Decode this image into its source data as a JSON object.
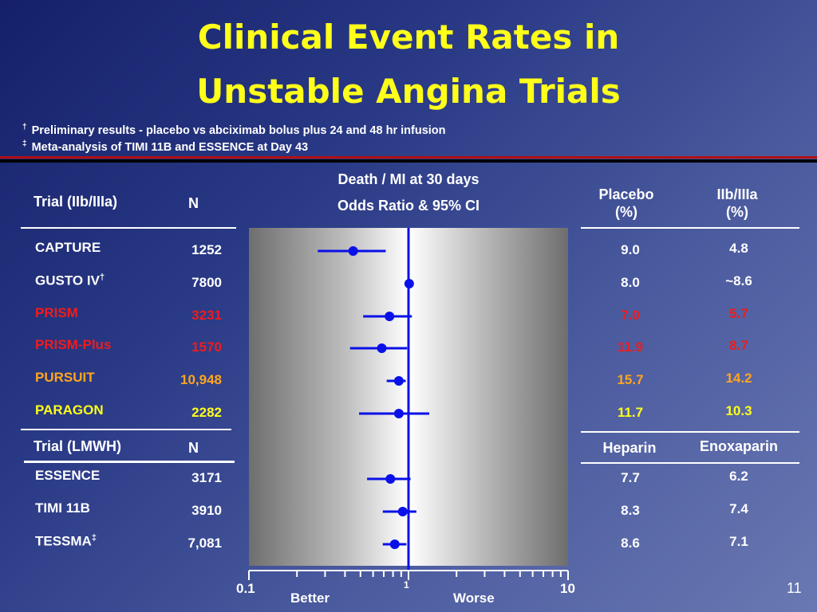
{
  "title_line1": "Clinical Event Rates in",
  "title_line2": "Unstable Angina Trials",
  "footnotes": [
    {
      "mark": "†",
      "text": "Preliminary results - placebo vs abciximab bolus plus 24 and 48 hr infusion"
    },
    {
      "mark": "‡",
      "text": "Meta-analysis of TIMI 11B and ESSENCE at Day 43"
    }
  ],
  "headers": {
    "trial": "Trial (IIb/IIIa)",
    "n": "N",
    "endpoint": "Death / MI at 30 days",
    "measure": "Odds Ratio & 95% CI",
    "placebo_l1": "Placebo",
    "placebo_l2": "(%)",
    "iib_l1": "IIb/IIIa",
    "iib_l2": "(%)"
  },
  "section2": {
    "trial": "Trial (LMWH)",
    "n": "N",
    "heparin": "Heparin",
    "enox": "Enoxaparin"
  },
  "colors": {
    "white": "#ffffff",
    "red": "#ee1c1c",
    "orange": "#ffa51f",
    "yellow": "#ffff1a",
    "marker": "#0a10e8"
  },
  "trials": [
    {
      "name": "CAPTURE",
      "sup": "",
      "n": "1252",
      "ctrl": "9.0",
      "tx": "4.8",
      "color": "#ffffff"
    },
    {
      "name": "GUSTO IV",
      "sup": "†",
      "n": "7800",
      "ctrl": "8.0",
      "tx": "~8.6",
      "color": "#ffffff"
    },
    {
      "name": "PRISM",
      "sup": "",
      "n": "3231",
      "ctrl": "7.0",
      "tx": "5.7",
      "color": "#ee1c1c"
    },
    {
      "name": "PRISM-Plus",
      "sup": "",
      "n": "1570",
      "ctrl": "11.9",
      "tx": "8.7",
      "color": "#ee1c1c"
    },
    {
      "name": "PURSUIT",
      "sup": "",
      "n": "10,948",
      "ctrl": "15.7",
      "tx": "14.2",
      "color": "#ffa51f"
    },
    {
      "name": "PARAGON",
      "sup": "",
      "n": "2282",
      "ctrl": "11.7",
      "tx": "10.3",
      "color": "#ffff1a"
    },
    {
      "name": "ESSENCE",
      "sup": "",
      "n": "3171",
      "ctrl": "7.7",
      "tx": "6.2",
      "color": "#ffffff"
    },
    {
      "name": "TIMI 11B",
      "sup": "",
      "n": "3910",
      "ctrl": "8.3",
      "tx": "7.4",
      "color": "#ffffff"
    },
    {
      "name": "TESSMA",
      "sup": "‡",
      "n": "7,081",
      "ctrl": "8.6",
      "tx": "7.1",
      "color": "#ffffff"
    }
  ],
  "chart_data": {
    "type": "forest",
    "scale": "log",
    "xlim": [
      0.1,
      10
    ],
    "reference_line": 1,
    "tick_labels": [
      "0.1",
      "1",
      "10"
    ],
    "left_label": "Better",
    "right_label": "Worse",
    "points": [
      {
        "trial": "CAPTURE",
        "or": 0.45,
        "lo": 0.27,
        "hi": 0.72
      },
      {
        "trial": "GUSTO IV",
        "or": 1.01,
        "lo": 1.01,
        "hi": 1.01
      },
      {
        "trial": "PRISM",
        "or": 0.76,
        "lo": 0.52,
        "hi": 1.05
      },
      {
        "trial": "PRISM-Plus",
        "or": 0.68,
        "lo": 0.43,
        "hi": 0.98
      },
      {
        "trial": "PURSUIT",
        "or": 0.87,
        "lo": 0.73,
        "hi": 0.96
      },
      {
        "trial": "PARAGON",
        "or": 0.87,
        "lo": 0.49,
        "hi": 1.35
      },
      {
        "trial": "ESSENCE",
        "or": 0.77,
        "lo": 0.55,
        "hi": 1.03
      },
      {
        "trial": "TIMI 11B",
        "or": 0.92,
        "lo": 0.69,
        "hi": 1.12
      },
      {
        "trial": "TESSMA",
        "or": 0.82,
        "lo": 0.69,
        "hi": 0.97
      }
    ]
  },
  "page_number": "11"
}
